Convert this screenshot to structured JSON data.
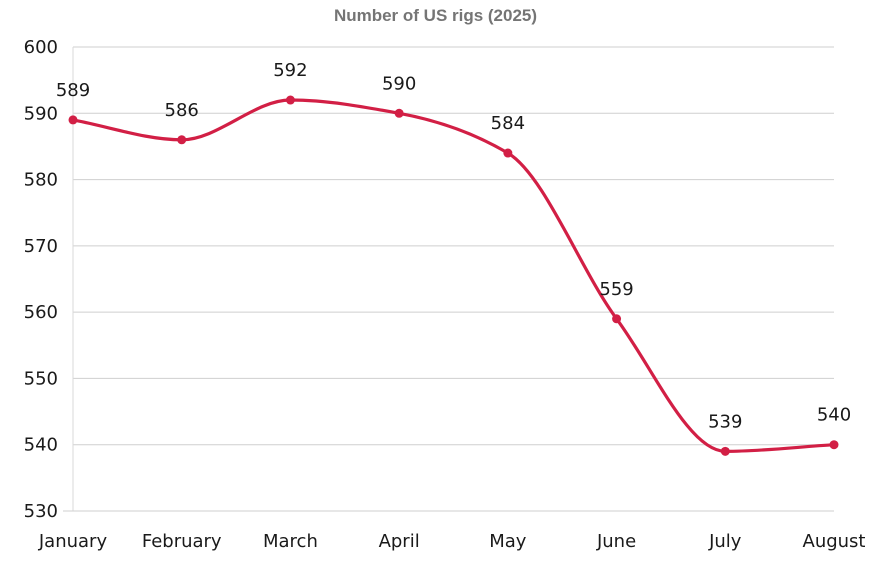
{
  "chart_data": {
    "type": "line",
    "title": "Number of US rigs (2025)",
    "xlabel": "",
    "ylabel": "",
    "categories": [
      "January",
      "February",
      "March",
      "April",
      "May",
      "June",
      "July",
      "August"
    ],
    "series": [
      {
        "values": [
          589,
          586,
          592,
          590,
          584,
          559,
          539,
          540
        ],
        "color": "#d21f45"
      }
    ],
    "ylim": [
      530,
      600
    ],
    "yticks": [
      530,
      540,
      550,
      560,
      570,
      580,
      590,
      600
    ],
    "grid": true,
    "smooth": true,
    "data_labels": true
  }
}
